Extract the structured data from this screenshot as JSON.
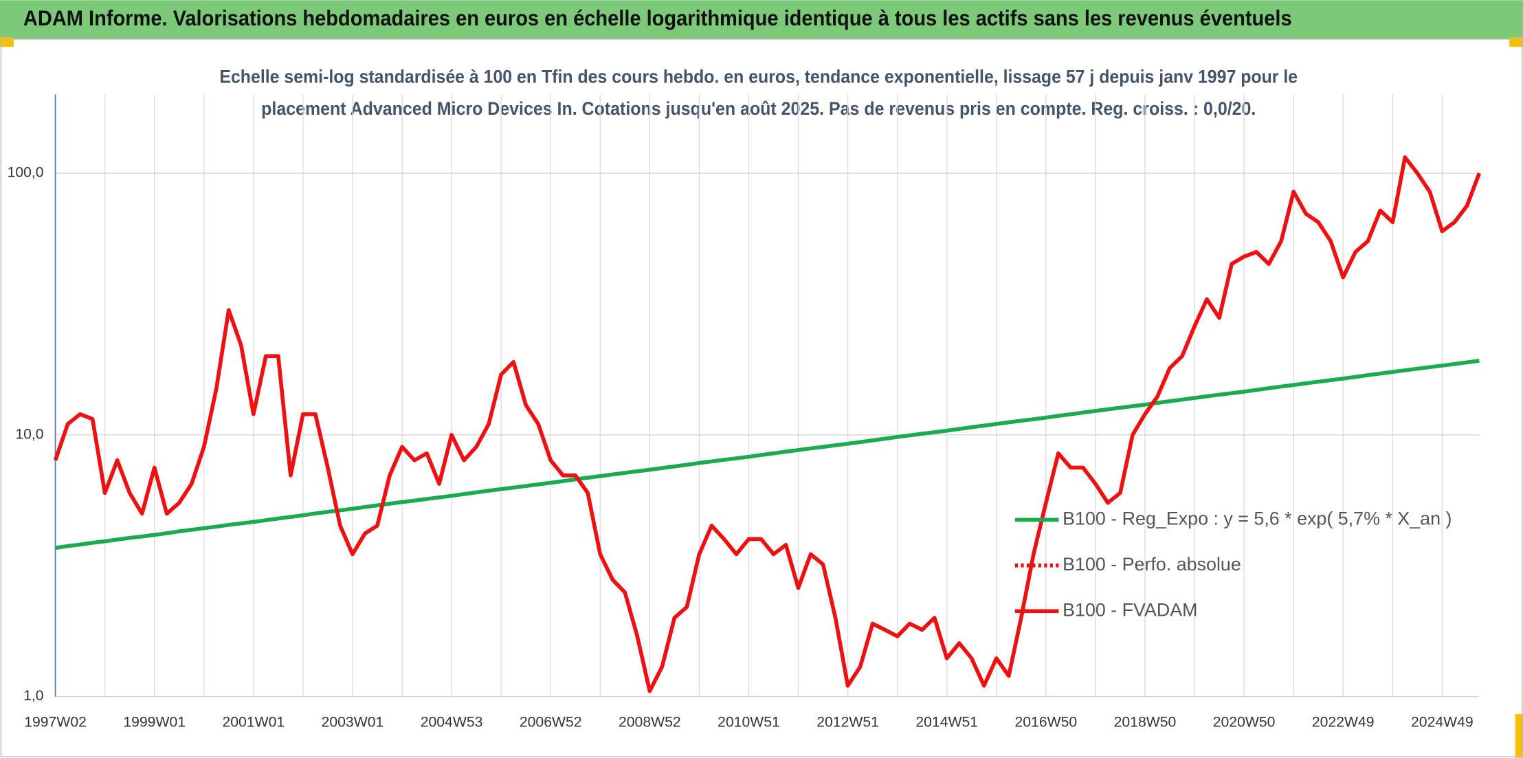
{
  "chart_data": {
    "type": "line",
    "title": "ADAM Informe. Valorisations hebdomadaires en euros en échelle logarithmique identique à tous les actifs sans les revenus éventuels",
    "subtitle": [
      "Echelle semi-log standardisée à 100 en Tfin des cours hebdo. en euros, tendance exponentielle, lissage 57 j depuis janv 1997 pour le",
      "placement Advanced Micro Devices In. Cotations jusqu'en août 2025. Pas de revenus pris en compte. Reg. croiss. : 0,0/20."
    ],
    "log_scale": true,
    "grid": true,
    "legend": "right",
    "ylim": [
      1,
      200
    ],
    "yticks": [
      {
        "value": 1,
        "label": "1,0"
      },
      {
        "value": 10,
        "label": "10,0"
      },
      {
        "value": 100,
        "label": "100,0"
      }
    ],
    "categories": [
      "1997W02",
      null,
      null,
      null,
      null,
      null,
      null,
      null,
      "1999W01",
      null,
      null,
      null,
      null,
      null,
      null,
      null,
      "2001W01",
      null,
      null,
      null,
      null,
      null,
      null,
      null,
      "2003W01",
      null,
      null,
      null,
      null,
      null,
      null,
      null,
      "2004W53",
      null,
      null,
      null,
      null,
      null,
      null,
      null,
      "2006W52",
      null,
      null,
      null,
      null,
      null,
      null,
      null,
      "2008W52",
      null,
      null,
      null,
      null,
      null,
      null,
      null,
      "2010W51",
      null,
      null,
      null,
      null,
      null,
      null,
      null,
      "2012W51",
      null,
      null,
      null,
      null,
      null,
      null,
      null,
      "2014W51",
      null,
      null,
      null,
      null,
      null,
      null,
      null,
      "2016W50",
      null,
      null,
      null,
      null,
      null,
      null,
      null,
      "2018W50",
      null,
      null,
      null,
      null,
      null,
      null,
      null,
      "2020W50",
      null,
      null,
      null,
      null,
      null,
      null,
      null,
      "2022W49",
      null,
      null,
      null,
      null,
      null,
      null,
      null,
      "2024W49",
      null,
      null,
      null
    ],
    "series": [
      {
        "name": "B100 - Reg_Expo : y = 5,6 * exp( 5,7% *  X_an )",
        "color": "#1aaa50",
        "dash": "solid",
        "values": [
          3.7,
          3.76,
          3.81,
          3.87,
          3.92,
          3.98,
          4.04,
          4.09,
          4.15,
          4.21,
          4.28,
          4.34,
          4.4,
          4.46,
          4.53,
          4.59,
          4.65,
          4.72,
          4.79,
          4.86,
          4.93,
          5.01,
          5.08,
          5.15,
          5.22,
          5.3,
          5.38,
          5.46,
          5.54,
          5.61,
          5.69,
          5.77,
          5.85,
          5.94,
          6.03,
          6.12,
          6.21,
          6.29,
          6.38,
          6.47,
          6.56,
          6.66,
          6.76,
          6.86,
          6.96,
          7.06,
          7.16,
          7.26,
          7.36,
          7.47,
          7.58,
          7.69,
          7.81,
          7.92,
          8.03,
          8.14,
          8.25,
          8.38,
          8.5,
          8.63,
          8.75,
          8.88,
          9.0,
          9.13,
          9.25,
          9.39,
          9.53,
          9.67,
          9.82,
          9.96,
          10.1,
          10.24,
          10.38,
          10.54,
          10.7,
          10.85,
          11.01,
          11.17,
          11.33,
          11.48,
          11.64,
          11.82,
          11.99,
          12.17,
          12.35,
          12.52,
          12.7,
          12.87,
          13.05,
          13.25,
          13.45,
          13.64,
          13.84,
          14.04,
          14.24,
          14.43,
          14.63,
          14.85,
          15.08,
          15.3,
          15.52,
          15.74,
          15.97,
          16.19,
          16.41,
          16.66,
          16.91,
          17.16,
          17.4,
          17.65,
          17.9,
          18.15,
          18.4,
          18.66,
          18.93,
          19.2
        ]
      },
      {
        "name": "B100 - Perfo. absolue",
        "color": "#ee1111",
        "dash": "dotted",
        "values": [
          null,
          null,
          null,
          null,
          null,
          null,
          null,
          null,
          null,
          null,
          null,
          null,
          null,
          null,
          null,
          null,
          null,
          null,
          null,
          null,
          null,
          null,
          null,
          null,
          null,
          null,
          null,
          null,
          null,
          null,
          null,
          null,
          null,
          null,
          null,
          null,
          null,
          null,
          null,
          null,
          null,
          null,
          null,
          null,
          null,
          null,
          null,
          null,
          null,
          null,
          null,
          null,
          null,
          null,
          null,
          null,
          null,
          null,
          null,
          null,
          null,
          null,
          null,
          null,
          null,
          null,
          null,
          null,
          null,
          null,
          null,
          null,
          null,
          null,
          null,
          null,
          null,
          null,
          null,
          null,
          null,
          null,
          null,
          null,
          null,
          null,
          null,
          null,
          null,
          null,
          null,
          null,
          null,
          null,
          null,
          null,
          null,
          null,
          null,
          null,
          null,
          null,
          null,
          null,
          null,
          null,
          null,
          null,
          null,
          null,
          null,
          null,
          null,
          null,
          null,
          null
        ]
      },
      {
        "name": "B100 - FVADAM",
        "color": "#ee1111",
        "dash": "solid",
        "values": [
          8,
          11,
          12,
          11.5,
          6,
          8,
          6,
          5,
          7.5,
          5,
          5.5,
          6.5,
          9,
          15,
          30,
          22,
          12,
          20,
          20,
          7,
          12,
          12,
          7.5,
          4.5,
          3.5,
          4.2,
          4.5,
          7,
          9,
          8,
          8.5,
          6.5,
          10,
          8,
          9,
          11,
          17,
          19,
          13,
          11,
          8,
          7,
          7,
          6,
          3.5,
          2.8,
          2.5,
          1.7,
          1.05,
          1.3,
          2,
          2.2,
          3.5,
          4.5,
          4,
          3.5,
          4,
          4,
          3.5,
          3.8,
          2.6,
          3.5,
          3.2,
          2,
          1.1,
          1.3,
          1.9,
          1.8,
          1.7,
          1.9,
          1.8,
          2,
          1.4,
          1.6,
          1.4,
          1.1,
          1.4,
          1.2,
          2,
          3.5,
          5.5,
          8.5,
          7.5,
          7.5,
          6.5,
          5.5,
          6,
          10,
          12,
          14,
          18,
          20,
          26,
          33,
          28,
          45,
          48,
          50,
          45,
          55,
          85,
          70,
          65,
          55,
          40,
          50,
          55,
          72,
          65,
          115,
          100,
          85,
          60,
          65,
          75,
          100
        ]
      }
    ]
  }
}
